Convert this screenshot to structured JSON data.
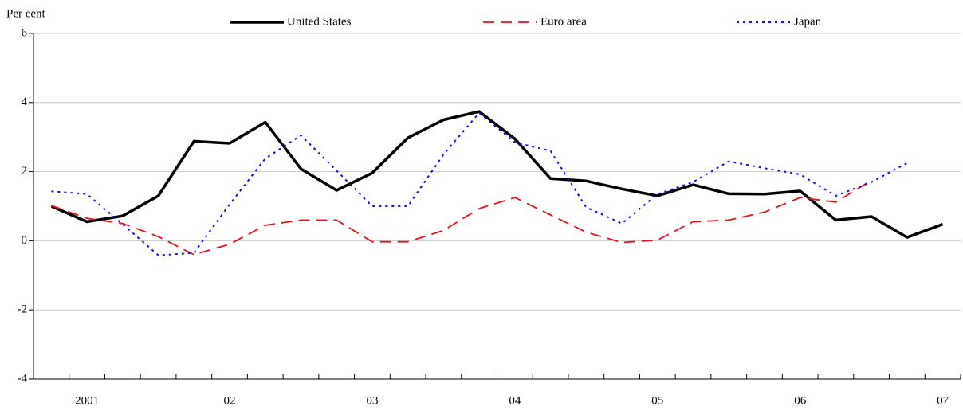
{
  "chart_data": {
    "type": "line",
    "y_label": "Per cent",
    "categories": [
      null,
      "2001",
      null,
      null,
      null,
      "02",
      null,
      null,
      null,
      "03",
      null,
      null,
      null,
      "04",
      null,
      null,
      null,
      "05",
      null,
      null,
      null,
      "06",
      null,
      null,
      null,
      "07"
    ],
    "series": [
      {
        "name": "United States",
        "color": "#000000",
        "dash": "solid",
        "values": [
          1.0,
          0.55,
          0.72,
          1.3,
          2.88,
          2.82,
          3.43,
          2.08,
          1.46,
          1.96,
          2.98,
          3.5,
          3.74,
          2.95,
          1.8,
          1.73,
          1.5,
          1.3,
          1.62,
          1.36,
          1.35,
          1.44,
          0.6,
          0.7,
          0.1,
          0.48
        ]
      },
      {
        "name": "Euro area",
        "color": "#e8101a",
        "dash": "dashed",
        "values": [
          1.02,
          0.65,
          0.5,
          0.12,
          -0.4,
          -0.1,
          0.45,
          0.6,
          0.6,
          -0.03,
          -0.03,
          0.3,
          0.93,
          1.25,
          0.75,
          0.25,
          -0.05,
          0.02,
          0.55,
          0.6,
          0.83,
          1.25,
          1.12,
          1.75,
          null,
          null
        ]
      },
      {
        "name": "Japan",
        "color": "#1010e0",
        "dash": "dotted",
        "values": [
          1.43,
          1.35,
          0.48,
          -0.42,
          -0.35,
          1.05,
          2.38,
          3.05,
          2.03,
          1.0,
          1.0,
          2.5,
          3.7,
          2.85,
          2.6,
          0.97,
          0.5,
          1.35,
          1.7,
          2.3,
          2.1,
          1.92,
          1.3,
          1.7,
          2.25,
          null
        ]
      }
    ],
    "ylim": [
      -4,
      6
    ],
    "yticks": [
      -4,
      -2,
      0,
      2,
      4,
      6
    ],
    "grid": true,
    "legend": "top"
  }
}
